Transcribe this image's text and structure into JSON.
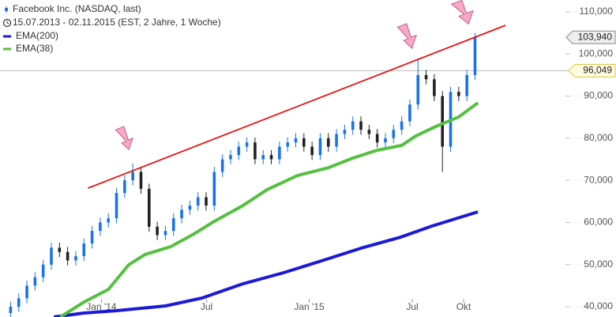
{
  "chart_data": {
    "type": "candlestick",
    "title": "Facebook Inc. (NASDAQ, last)",
    "subtitle": "15.07.2013 - 02.11.2015 (EST, 2 Jahre, 1 Woche)",
    "up_color": "#1a73e8",
    "down_color": "#222222",
    "x": [
      2,
      4,
      6,
      8,
      10,
      12,
      14,
      16,
      18,
      20,
      22,
      24,
      26,
      28,
      30,
      32,
      34,
      36,
      38,
      40,
      42,
      44,
      46,
      48,
      50,
      52,
      54,
      56,
      58,
      60,
      62,
      64,
      66,
      68,
      70,
      72,
      74,
      76,
      78,
      80,
      82,
      84,
      86,
      88,
      90,
      92,
      94,
      96,
      98,
      100,
      102,
      104,
      106,
      108,
      110,
      112,
      114,
      116
    ],
    "open": [
      38500,
      40000,
      42000,
      45000,
      47000,
      50000,
      54000,
      53000,
      51000,
      52000,
      55000,
      58000,
      60000,
      61000,
      67000,
      70000,
      72000,
      68000,
      59000,
      57000,
      58000,
      61000,
      63000,
      64000,
      66000,
      64000,
      72000,
      75000,
      76000,
      78000,
      79000,
      75000,
      76000,
      75000,
      78000,
      79000,
      80000,
      78000,
      76000,
      80000,
      78000,
      81000,
      82000,
      84000,
      82000,
      81000,
      79000,
      80000,
      82000,
      84000,
      88000,
      95000,
      94000,
      90000,
      78000,
      91000,
      90000,
      95000
    ],
    "high": [
      41200,
      43200,
      46200,
      48200,
      51200,
      55200,
      55200,
      54200,
      53200,
      56200,
      59200,
      61200,
      62200,
      68200,
      71200,
      74000,
      73200,
      69200,
      60200,
      59200,
      62200,
      64200,
      65200,
      67200,
      67200,
      73200,
      76200,
      77200,
      79200,
      80200,
      80200,
      77200,
      77200,
      79200,
      80200,
      81200,
      81200,
      79200,
      81200,
      81200,
      82200,
      83200,
      85200,
      85200,
      83200,
      82200,
      81200,
      83200,
      85200,
      89200,
      99000,
      96200,
      95200,
      91200,
      92200,
      92200,
      96200,
      105000
    ],
    "low": [
      37300,
      38800,
      40800,
      43800,
      45800,
      48800,
      51800,
      49800,
      49800,
      50800,
      53800,
      56800,
      58800,
      59800,
      65800,
      68800,
      66800,
      57800,
      55800,
      55800,
      56800,
      59800,
      61800,
      62800,
      62800,
      62800,
      70800,
      73800,
      74800,
      76800,
      73800,
      73800,
      73800,
      73800,
      76800,
      77800,
      76800,
      74800,
      74800,
      76800,
      76800,
      79800,
      80800,
      80800,
      79800,
      77800,
      77800,
      78800,
      80800,
      82800,
      86800,
      92800,
      88800,
      72000,
      76800,
      88800,
      88800,
      93800
    ],
    "close": [
      40000,
      42000,
      45000,
      47000,
      50000,
      54000,
      53000,
      51000,
      52000,
      55000,
      58000,
      60000,
      61000,
      67000,
      70000,
      72000,
      68000,
      59000,
      57000,
      58000,
      61000,
      63000,
      64000,
      66000,
      64000,
      72000,
      75000,
      76000,
      78000,
      79000,
      75000,
      76000,
      75000,
      78000,
      79000,
      80000,
      78000,
      76000,
      80000,
      78000,
      81000,
      82000,
      84000,
      82000,
      81000,
      79000,
      80000,
      82000,
      84000,
      88000,
      95000,
      94000,
      90000,
      78000,
      91000,
      90000,
      95000,
      103940
    ],
    "series": [
      {
        "name": "EMA(200)",
        "color": "#1a1ad8",
        "x": [
          12.6,
          20,
          28,
          40,
          49,
          59,
          69,
          78.3,
          88,
          97.7,
          105.4,
          116.7
        ],
        "values": [
          37560,
          38500,
          39060,
          40190,
          42060,
          45440,
          48070,
          50880,
          53890,
          56510,
          59140,
          62520
        ]
      },
      {
        "name": "EMA(38)",
        "color": "#55c040",
        "x": [
          14.2,
          20,
          26,
          31,
          35,
          41.3,
          47,
          52,
          59,
          65,
          72.4,
          80,
          86,
          92,
          98,
          101.5,
          106.4,
          112,
          116.7
        ],
        "values": [
          37560,
          41100,
          44100,
          49950,
          52400,
          54260,
          57270,
          60270,
          64000,
          67800,
          71150,
          73000,
          75280,
          77160,
          78300,
          80540,
          82800,
          85050,
          88400
        ]
      }
    ],
    "trend_line": {
      "x": [
        21.0,
        123.5
      ],
      "values": [
        68150,
        106810
      ],
      "color": "#e81010"
    },
    "reference_line": {
      "value": 96049,
      "label": "96,049"
    },
    "last_price": {
      "value": 103940,
      "label": "103,940"
    },
    "xlim": [
      -0.6,
      138.2
    ],
    "ylim": [
      37560,
      112810
    ],
    "xticks": [
      {
        "value": 24.3,
        "label": "Jan '14"
      },
      {
        "value": 50.1,
        "label": "Jul"
      },
      {
        "value": 75.3,
        "label": "Jan '15"
      },
      {
        "value": 100.6,
        "label": "Jul"
      },
      {
        "value": 113.2,
        "label": "Okt"
      }
    ],
    "yticks": [
      {
        "value": 40000,
        "label": "40,000"
      },
      {
        "value": 50000,
        "label": "50,000"
      },
      {
        "value": 60000,
        "label": "60,000"
      },
      {
        "value": 70000,
        "label": "70,000"
      },
      {
        "value": 80000,
        "label": "80,000"
      },
      {
        "value": 90000,
        "label": "90,000"
      },
      {
        "value": 100000,
        "label": "100,000"
      },
      {
        "value": 110000,
        "label": "110,000"
      }
    ]
  }
}
